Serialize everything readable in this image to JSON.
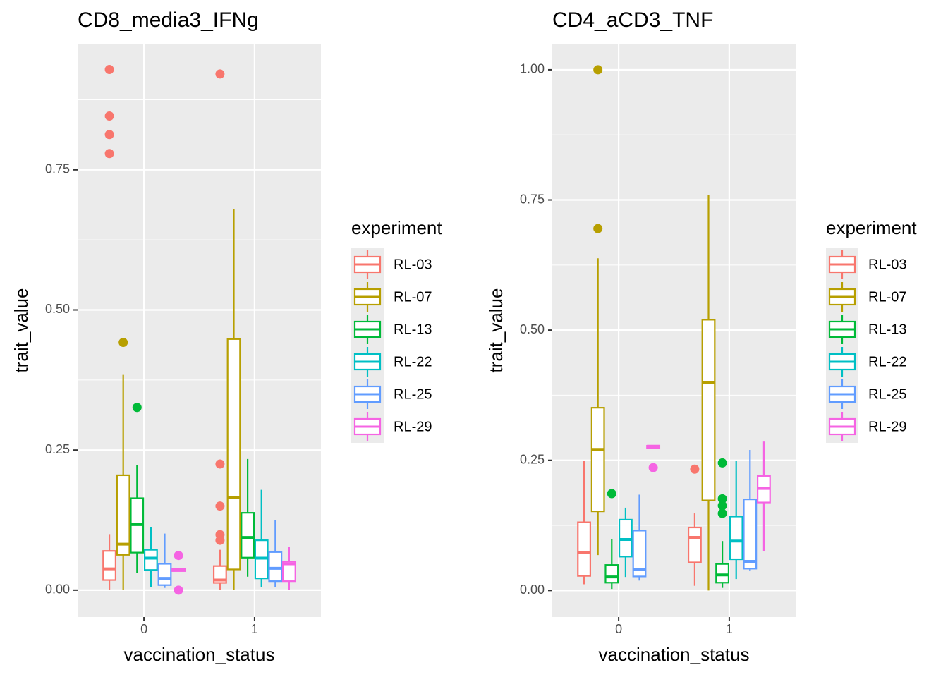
{
  "chart_data": [
    {
      "type": "boxplot",
      "title": "CD8_media3_IFNg",
      "x_label": "vaccination_status",
      "y_label": "trait_value",
      "categories": [
        "0",
        "1"
      ],
      "legend_title": "experiment",
      "grid": true,
      "ylim": [
        -0.048,
        0.975
      ],
      "yticks": [
        {
          "value": 0,
          "label": "0.00"
        },
        {
          "value": 0.25,
          "label": "0.25"
        },
        {
          "value": 0.5,
          "label": "0.50"
        },
        {
          "value": 0.75,
          "label": "0.75"
        }
      ],
      "minor_yticks": [
        0.125,
        0.375,
        0.625,
        0.875
      ],
      "series": [
        {
          "name": "RL-03",
          "color": "#F8766D",
          "boxes": [
            {
              "low": 0,
              "q1": 0.018,
              "median": 0.038,
              "q3": 0.07,
              "high": 0.1,
              "outliers": [
                0.929,
                0.846,
                0.813,
                0.779
              ]
            },
            {
              "low": 0,
              "q1": 0.013,
              "median": 0.018,
              "q3": 0.043,
              "high": 0.072,
              "outliers": [
                0.921,
                0.225,
                0.15,
                0.099,
                0.089
              ]
            }
          ]
        },
        {
          "name": "RL-07",
          "color": "#B79F00",
          "boxes": [
            {
              "low": 0,
              "q1": 0.063,
              "median": 0.082,
              "q3": 0.205,
              "high": 0.384,
              "outliers": [
                0.442
              ]
            },
            {
              "low": 0,
              "q1": 0.037,
              "median": 0.165,
              "q3": 0.448,
              "high": 0.68
            }
          ]
        },
        {
          "name": "RL-13",
          "color": "#00BA38",
          "boxes": [
            {
              "low": 0.031,
              "q1": 0.067,
              "median": 0.117,
              "q3": 0.164,
              "high": 0.223,
              "outliers": [
                0.326
              ]
            },
            {
              "low": 0.024,
              "q1": 0.058,
              "median": 0.094,
              "q3": 0.138,
              "high": 0.234
            }
          ]
        },
        {
          "name": "RL-22",
          "color": "#00BFC4",
          "boxes": [
            {
              "low": 0.006,
              "q1": 0.036,
              "median": 0.057,
              "q3": 0.072,
              "high": 0.113
            },
            {
              "low": 0.006,
              "q1": 0.021,
              "median": 0.057,
              "q3": 0.089,
              "high": 0.179
            }
          ]
        },
        {
          "name": "RL-25",
          "color": "#619CFF",
          "boxes": [
            {
              "low": 0.004,
              "q1": 0.009,
              "median": 0.021,
              "q3": 0.047,
              "high": 0.101
            },
            {
              "low": 0.005,
              "q1": 0.016,
              "median": 0.039,
              "q3": 0.068,
              "high": 0.125
            }
          ]
        },
        {
          "name": "RL-29",
          "color": "#F564E3",
          "boxes": [
            {
              "low": 0.034,
              "q1": 0.034,
              "median": 0.036,
              "q3": 0.038,
              "high": 0.038,
              "outliers": [
                0.062,
                0
              ]
            },
            {
              "low": 0,
              "q1": 0.016,
              "median": 0.047,
              "q3": 0.051,
              "high": 0.077
            }
          ]
        }
      ]
    },
    {
      "type": "boxplot",
      "title": "CD4_aCD3_TNF",
      "x_label": "vaccination_status",
      "y_label": "trait_value",
      "categories": [
        "0",
        "1"
      ],
      "legend_title": "experiment",
      "grid": true,
      "ylim": [
        -0.051,
        1.05
      ],
      "yticks": [
        {
          "value": 0,
          "label": "0.00"
        },
        {
          "value": 0.25,
          "label": "0.25"
        },
        {
          "value": 0.5,
          "label": "0.50"
        },
        {
          "value": 0.75,
          "label": "0.75"
        },
        {
          "value": 1,
          "label": "1.00"
        }
      ],
      "minor_yticks": [
        0.125,
        0.375,
        0.625,
        0.875
      ],
      "series": [
        {
          "name": "RL-03",
          "color": "#F8766D",
          "boxes": [
            {
              "low": 0.012,
              "q1": 0.028,
              "median": 0.073,
              "q3": 0.131,
              "high": 0.249
            },
            {
              "low": 0.009,
              "q1": 0.054,
              "median": 0.102,
              "q3": 0.121,
              "high": 0.148,
              "outliers": [
                0.233
              ]
            }
          ]
        },
        {
          "name": "RL-07",
          "color": "#B79F00",
          "boxes": [
            {
              "low": 0.068,
              "q1": 0.152,
              "median": 0.271,
              "q3": 0.351,
              "high": 0.638,
              "outliers": [
                1,
                0.695
              ]
            },
            {
              "low": 0,
              "q1": 0.173,
              "median": 0.4,
              "q3": 0.52,
              "high": 0.759
            }
          ]
        },
        {
          "name": "RL-13",
          "color": "#00BA38",
          "boxes": [
            {
              "low": 0.003,
              "q1": 0.015,
              "median": 0.026,
              "q3": 0.049,
              "high": 0.098,
              "outliers": [
                0.186
              ]
            },
            {
              "low": 0.005,
              "q1": 0.015,
              "median": 0.03,
              "q3": 0.051,
              "high": 0.095,
              "outliers": [
                0.245,
                0.176,
                0.163,
                0.148
              ]
            }
          ]
        },
        {
          "name": "RL-22",
          "color": "#00BFC4",
          "boxes": [
            {
              "low": 0.026,
              "q1": 0.065,
              "median": 0.098,
              "q3": 0.136,
              "high": 0.159
            },
            {
              "low": 0.022,
              "q1": 0.06,
              "median": 0.095,
              "q3": 0.142,
              "high": 0.249
            }
          ]
        },
        {
          "name": "RL-25",
          "color": "#619CFF",
          "boxes": [
            {
              "low": 0.019,
              "q1": 0.027,
              "median": 0.041,
              "q3": 0.115,
              "high": 0.184
            },
            {
              "low": 0.037,
              "q1": 0.042,
              "median": 0.056,
              "q3": 0.175,
              "high": 0.27
            }
          ]
        },
        {
          "name": "RL-29",
          "color": "#F564E3",
          "boxes": [
            {
              "low": 0.273,
              "q1": 0.274,
              "median": 0.277,
              "q3": 0.278,
              "high": 0.279,
              "outliers": [
                0.236
              ]
            },
            {
              "low": 0.075,
              "q1": 0.169,
              "median": 0.196,
              "q3": 0.22,
              "high": 0.286
            }
          ]
        }
      ]
    }
  ]
}
